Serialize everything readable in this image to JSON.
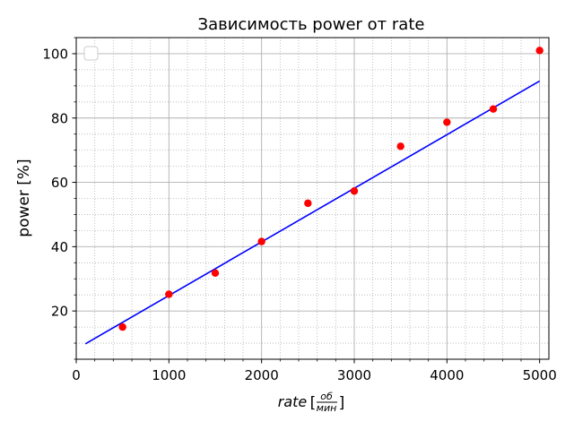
{
  "chart_data": {
    "type": "scatter",
    "title": "Зависимость power от rate",
    "xlabel": {
      "text": "rate",
      "bracket_open": "[",
      "unit_numerator": "об",
      "unit_denominator": "мин",
      "bracket_close": "]"
    },
    "ylabel": "power  [%]",
    "xlim": [
      0,
      5100
    ],
    "ylim": [
      5,
      105
    ],
    "x_ticks": [
      0,
      1000,
      2000,
      3000,
      4000,
      5000
    ],
    "y_ticks": [
      20,
      40,
      60,
      80,
      100
    ],
    "grid": {
      "major": true,
      "minor": true,
      "x_minor_step": 200,
      "y_minor_step": 5
    },
    "legend": {
      "placement": "upper-left",
      "entries": []
    },
    "series": [
      {
        "kind": "points",
        "color": "#ff0000",
        "x": [
          500,
          1000,
          1500,
          2000,
          2500,
          3000,
          3500,
          4000,
          4500,
          5000
        ],
        "y": [
          15,
          25.2,
          31.8,
          41.6,
          53.5,
          57.3,
          71.2,
          78.7,
          82.8,
          101
        ]
      },
      {
        "kind": "fit-line",
        "color": "#0000ff",
        "x": [
          100,
          5000
        ],
        "y": [
          9.8,
          91.5
        ]
      }
    ]
  }
}
